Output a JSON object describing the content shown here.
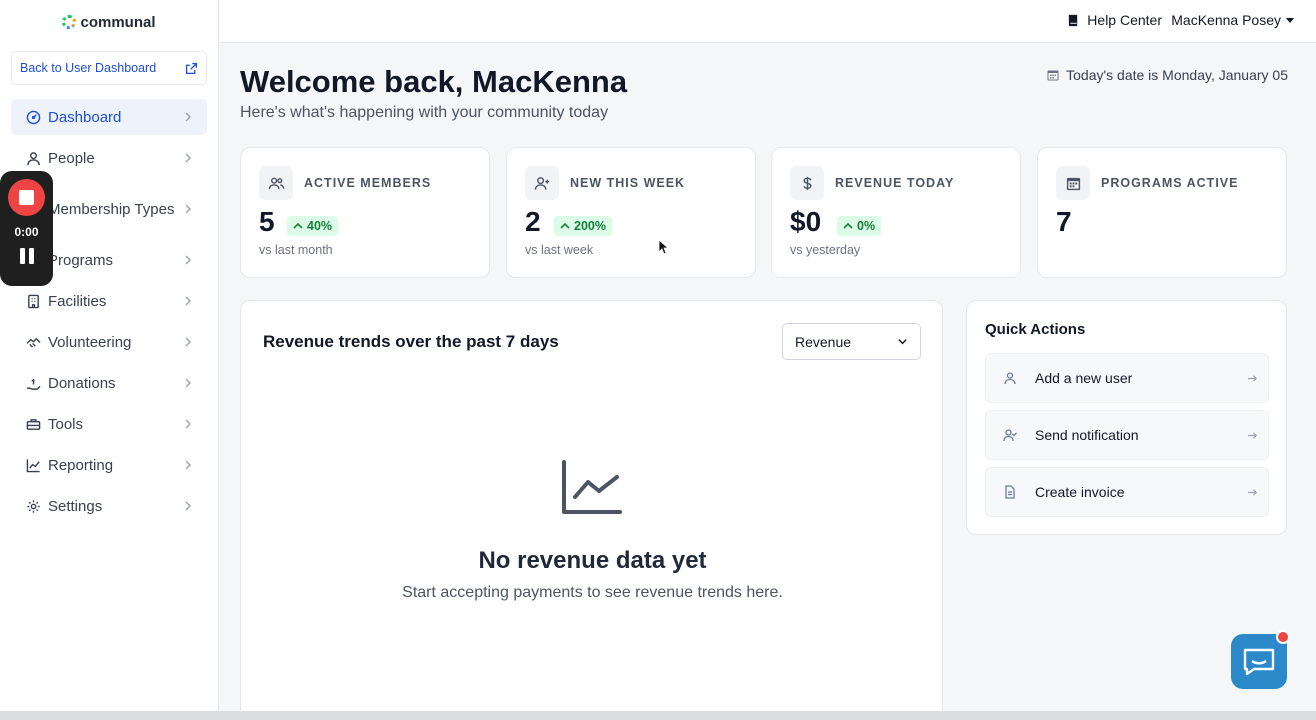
{
  "app": {
    "logo_text": "communal"
  },
  "sidebar": {
    "back_link": "Back to User Dashboard",
    "items": [
      {
        "label": "Dashboard",
        "icon": "dashboard-icon"
      },
      {
        "label": "People",
        "icon": "user-icon"
      },
      {
        "label": "Membership Types",
        "icon": "membership-icon"
      },
      {
        "label": "Programs",
        "icon": "programs-icon"
      },
      {
        "label": "Facilities",
        "icon": "building-icon"
      },
      {
        "label": "Volunteering",
        "icon": "handshake-icon"
      },
      {
        "label": "Donations",
        "icon": "donation-icon"
      },
      {
        "label": "Tools",
        "icon": "toolbox-icon"
      },
      {
        "label": "Reporting",
        "icon": "chart-line-icon"
      },
      {
        "label": "Settings",
        "icon": "gear-icon"
      }
    ]
  },
  "recorder": {
    "time": "0:00"
  },
  "topbar": {
    "help": "Help Center",
    "user": "MacKenna Posey"
  },
  "header": {
    "welcome": "Welcome back, MacKenna",
    "subtitle": "Here's what's happening with your community today",
    "date": "Today's date is Monday, January 05"
  },
  "stats": [
    {
      "title": "ACTIVE MEMBERS",
      "value": "5",
      "change": "40%",
      "sub": "vs last month"
    },
    {
      "title": "NEW THIS WEEK",
      "value": "2",
      "change": "200%",
      "sub": "vs last week"
    },
    {
      "title": "REVENUE TODAY",
      "value": "$0",
      "change": "0%",
      "sub": "vs yesterday"
    },
    {
      "title": "PROGRAMS ACTIVE",
      "value": "7"
    }
  ],
  "revenue_chart": {
    "title": "Revenue trends over the past 7 days",
    "select_value": "Revenue",
    "empty_title": "No revenue data yet",
    "empty_sub": "Start accepting payments to see revenue trends here."
  },
  "quick_actions": {
    "title": "Quick Actions",
    "items": [
      {
        "label": "Add a new user",
        "icon": "user-icon"
      },
      {
        "label": "Send notification",
        "icon": "user-check-icon"
      },
      {
        "label": "Create invoice",
        "icon": "document-icon"
      }
    ]
  },
  "colors": {
    "accent": "#1d4ed8",
    "positive_bg": "#dcfce7",
    "positive_text": "#15803d",
    "chat": "#2b89c9",
    "record": "#ef4444"
  }
}
